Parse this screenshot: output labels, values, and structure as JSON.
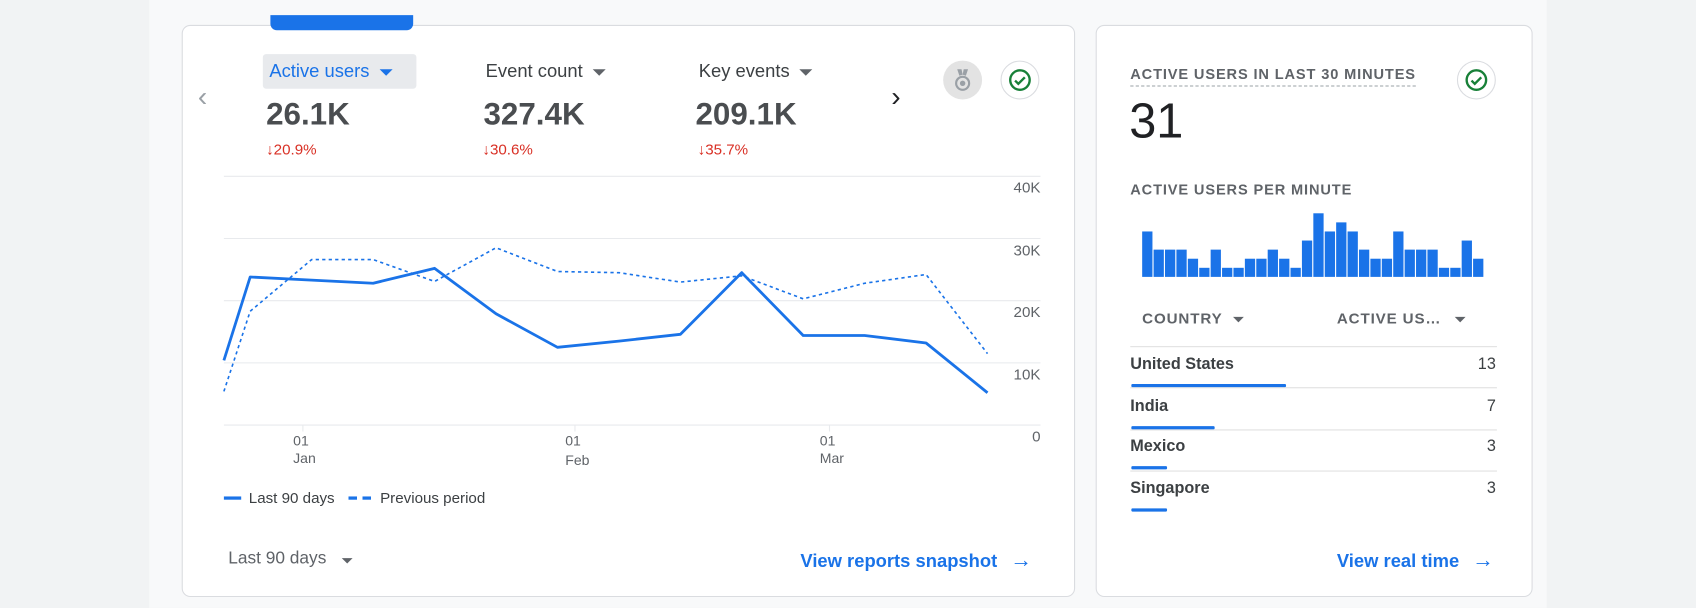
{
  "colors": {
    "accent": "#1a73e8",
    "negative": "#d93025",
    "success": "#188038"
  },
  "overview": {
    "metrics": [
      {
        "label": "Active users",
        "value": "26.1K",
        "change": "20.9%",
        "direction": "down",
        "selected": true
      },
      {
        "label": "Event count",
        "value": "327.4K",
        "change": "30.6%",
        "direction": "down",
        "selected": false
      },
      {
        "label": "Key events",
        "value": "209.1K",
        "change": "35.7%",
        "direction": "down",
        "selected": false
      }
    ],
    "icons": {
      "prev": "chevron-left-icon",
      "next": "chevron-right-icon",
      "insights": "medal-icon",
      "status": "check-circle-icon"
    },
    "date_range": "Last 90 days",
    "view_link": "View reports snapshot"
  },
  "chart_data": {
    "type": "line",
    "title": "",
    "xlabel": "",
    "ylabel": "",
    "ylim": [
      0,
      40000
    ],
    "y_ticks": [
      "0",
      "10K",
      "20K",
      "30K",
      "40K"
    ],
    "x_ticks": [
      {
        "day": "01",
        "month": "Jan"
      },
      {
        "day": "01",
        "month": "Feb"
      },
      {
        "day": "01",
        "month": "Mar"
      }
    ],
    "grid": true,
    "legend_position": "bottom-left",
    "x": [
      "Dec 23",
      "Dec 26",
      "Jan 02",
      "Jan 09",
      "Jan 16",
      "Jan 23",
      "Jan 30",
      "Feb 06",
      "Feb 13",
      "Feb 20",
      "Feb 27",
      "Mar 05",
      "Mar 12",
      "Mar 19"
    ],
    "series": [
      {
        "name": "Last 90 days",
        "style": "solid",
        "values": [
          10400,
          23800,
          23300,
          22800,
          25200,
          17900,
          12500,
          13500,
          14600,
          24500,
          14400,
          14400,
          13200,
          5200
        ]
      },
      {
        "name": "Previous period",
        "style": "dashed",
        "values": [
          5400,
          18300,
          26600,
          26600,
          23100,
          28500,
          24700,
          24500,
          23000,
          24000,
          20300,
          22800,
          24200,
          11500
        ]
      }
    ]
  },
  "realtime": {
    "title": "ACTIVE USERS IN LAST 30 MINUTES",
    "value": "31",
    "per_minute_title": "ACTIVE USERS PER MINUTE",
    "per_minute": [
      5,
      3,
      3,
      3,
      2,
      1,
      3,
      1,
      1,
      2,
      2,
      3,
      2,
      1,
      4,
      7,
      5,
      6,
      5,
      3,
      2,
      2,
      5,
      3,
      3,
      3,
      1,
      1,
      4,
      2
    ],
    "table": {
      "headers": [
        "COUNTRY",
        "ACTIVE US…"
      ],
      "rows": [
        {
          "country": "United States",
          "users": 13
        },
        {
          "country": "India",
          "users": 7
        },
        {
          "country": "Mexico",
          "users": 3
        },
        {
          "country": "Singapore",
          "users": 3
        }
      ]
    },
    "view_link": "View real time"
  }
}
